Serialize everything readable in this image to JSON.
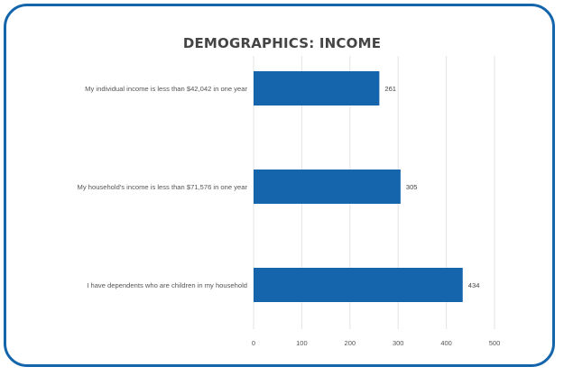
{
  "chart_data": {
    "type": "bar",
    "orientation": "horizontal",
    "title": "DEMOGRAPHICS: INCOME",
    "categories": [
      "My individual income is less than $42,042 in one year",
      "My household's income is less than $71,576 in one year",
      "I have dependents who are children in my household"
    ],
    "values": [
      261,
      305,
      434
    ],
    "data_labels": [
      "261",
      "305",
      "434"
    ],
    "xlim": [
      0,
      500
    ],
    "xticks": [
      0,
      100,
      200,
      300,
      400,
      500
    ],
    "xtick_labels": [
      "0",
      "100",
      "200",
      "300",
      "400",
      "500"
    ],
    "grid": true,
    "bar_color": "#1565ad",
    "frame_color": "#1565ad"
  }
}
